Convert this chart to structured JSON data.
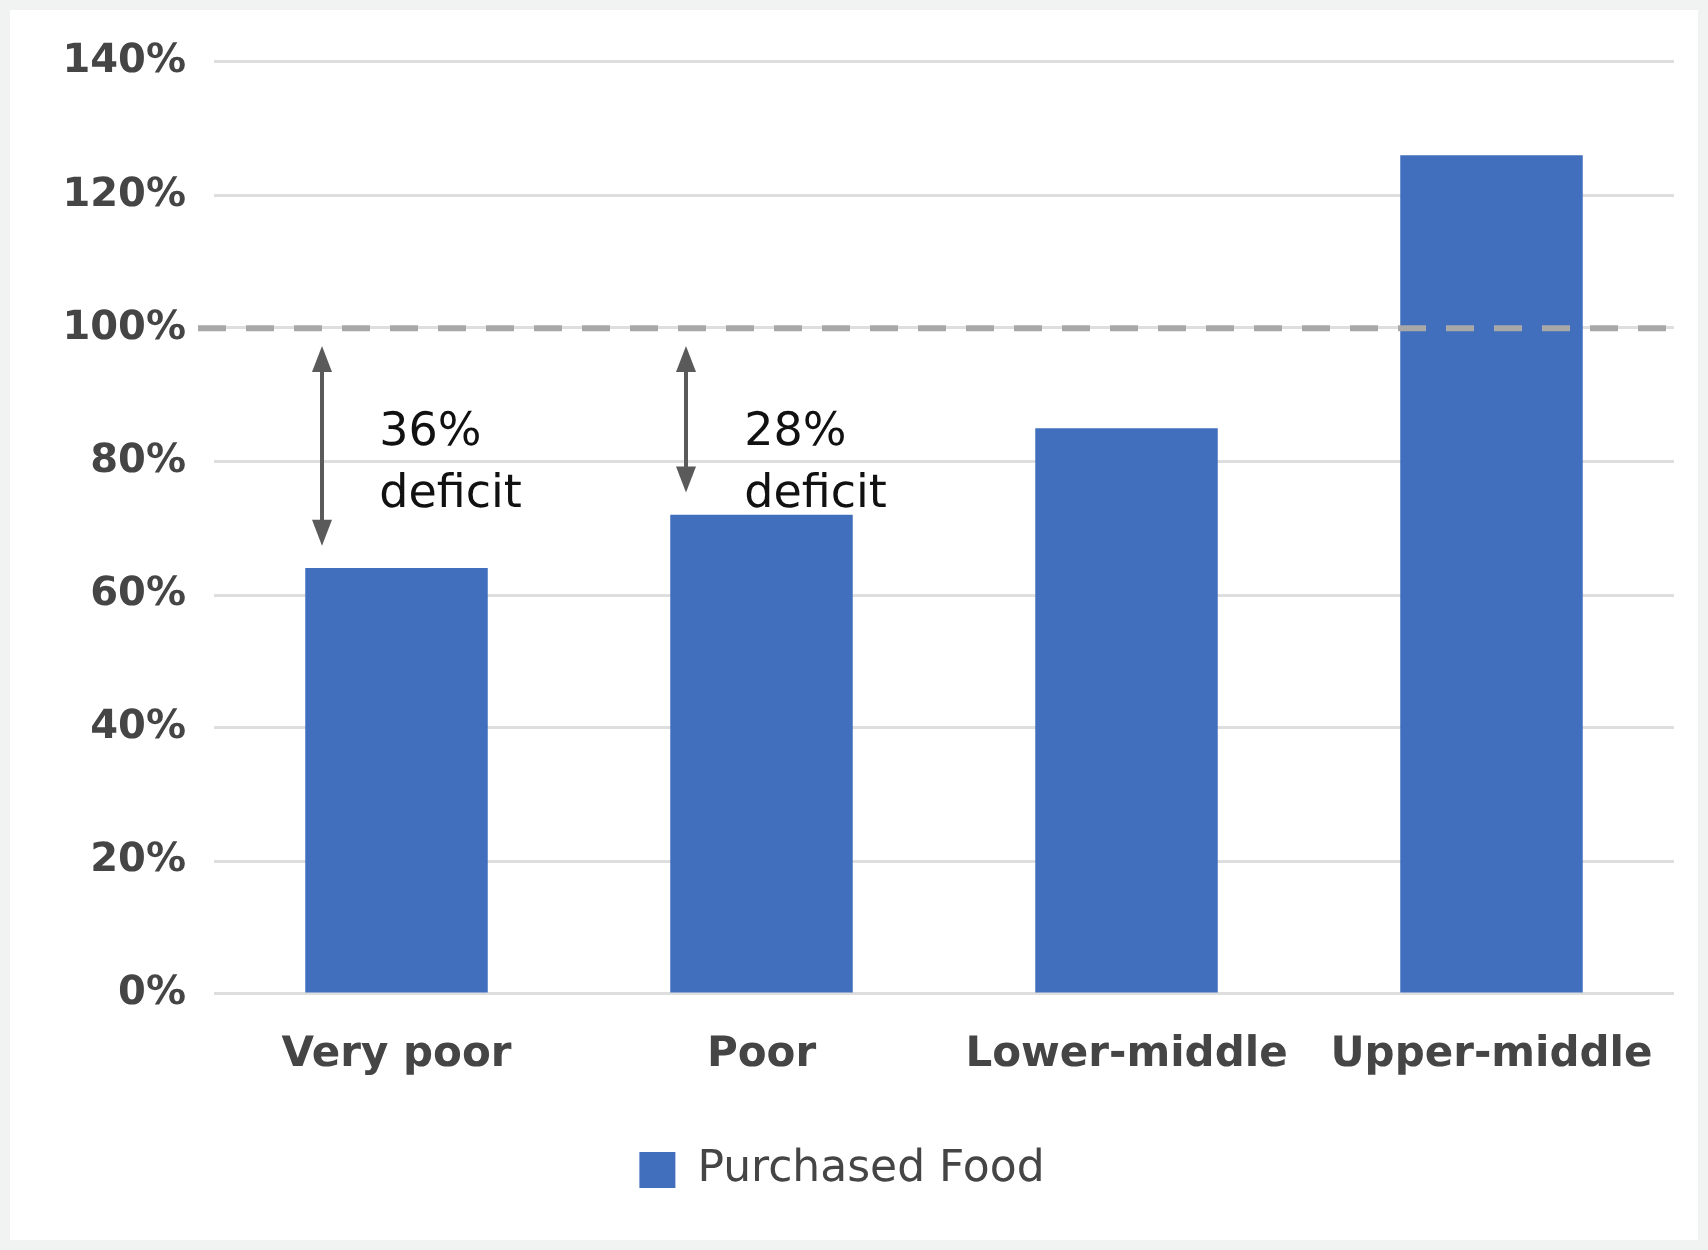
{
  "chart_data": {
    "type": "bar",
    "categories": [
      "Very poor",
      "Poor",
      "Lower-middle",
      "Upper-middle"
    ],
    "series": [
      {
        "name": "Purchased Food",
        "color": "#416fbd",
        "values": [
          64,
          72,
          85,
          126
        ]
      }
    ],
    "ylim": [
      0,
      140
    ],
    "yticks": [
      {
        "value": 0,
        "label": "0%"
      },
      {
        "value": 20,
        "label": "20%"
      },
      {
        "value": 40,
        "label": "40%"
      },
      {
        "value": 60,
        "label": "60%"
      },
      {
        "value": 80,
        "label": "80%"
      },
      {
        "value": 100,
        "label": "100%"
      },
      {
        "value": 120,
        "label": "120%"
      },
      {
        "value": 140,
        "label": "140%"
      }
    ],
    "grid": "y",
    "legend": "bottom",
    "ref_lines": [
      {
        "axis": "y",
        "value": 100,
        "color": "#a8a8a8",
        "line_style": "dashed"
      }
    ],
    "annotations": [
      "36%\ndeficit",
      "28%\ndeficit"
    ]
  }
}
